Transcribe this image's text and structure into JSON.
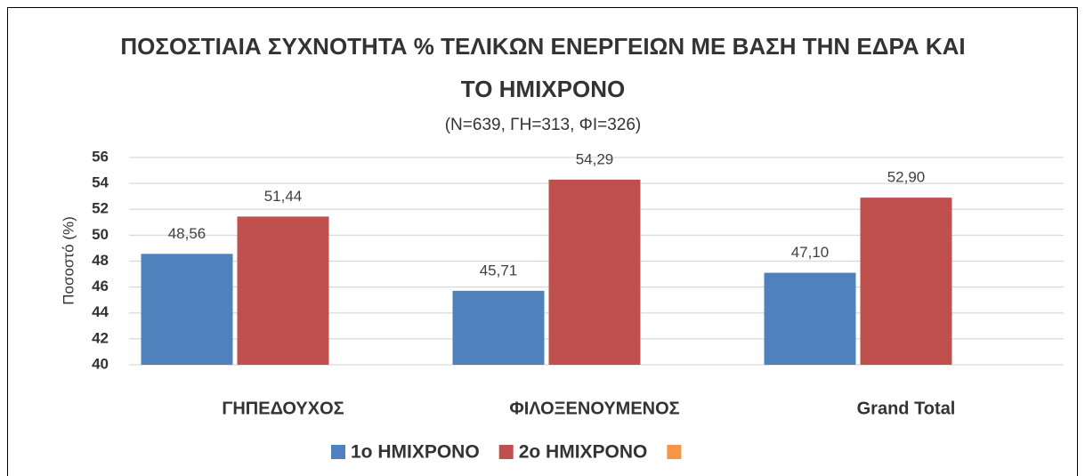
{
  "chart_data": {
    "type": "bar",
    "title": "ΠΟΣΟΣΤΙΑΙΑ ΣΥΧΝΟΤΗΤΑ % ΤΕΛΙΚΩΝ ΕΝΕΡΓΕΙΩΝ ΜΕ ΒΑΣΗ ΤΗΝ ΕΔΡΑ ΚΑΙ ΤΟ ΗΜΙΧΡΟΝΟ",
    "subtitle": "(N=639, ΓΗ=313, ΦΙ=326)",
    "y_label": "Ποσοστό (%)",
    "categories": [
      "ΓΗΠΕΔΟΥΧΟΣ",
      "ΦΙΛΟΞΕΝΟΥΜΕΝΟΣ",
      "Grand Total"
    ],
    "series": [
      {
        "name": "1ο ΗΜΙΧΡΟΝΟ",
        "color": "#4f81bd",
        "values": [
          48.56,
          45.71,
          47.1
        ],
        "value_labels": [
          "48,56",
          "45,71",
          "47,10"
        ]
      },
      {
        "name": "2ο ΗΜΙΧΡΟΝΟ",
        "color": "#c0504d",
        "values": [
          51.44,
          54.29,
          52.9
        ],
        "value_labels": [
          "51,44",
          "54,29",
          "52,90"
        ]
      },
      {
        "name": null,
        "color": "#f79646",
        "values": [
          null,
          null,
          null
        ]
      }
    ],
    "ylim": [
      40,
      56
    ],
    "yticks": [
      40,
      42,
      44,
      46,
      48,
      50,
      52,
      54,
      56
    ],
    "grid": true,
    "legend": "bottom"
  }
}
